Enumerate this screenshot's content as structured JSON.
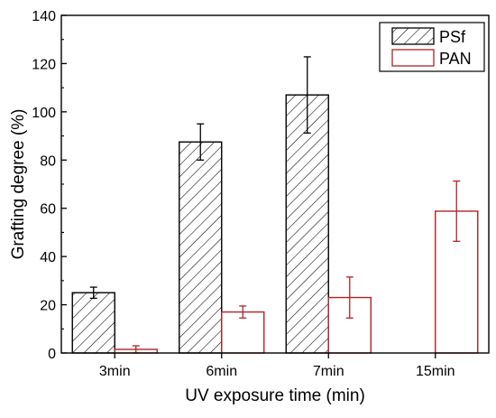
{
  "chart_data": {
    "type": "bar",
    "title": "",
    "xlabel": "UV exposure time (min)",
    "ylabel": "Grafting degree (%)",
    "ylim": [
      0,
      140
    ],
    "yticks": [
      0,
      20,
      40,
      60,
      80,
      100,
      120,
      140
    ],
    "categories": [
      "3min",
      "6min",
      "7min",
      "15min"
    ],
    "grid": false,
    "legend_position": "top-right",
    "series": [
      {
        "name": "PSf",
        "color": "#000000",
        "fill": "hatched",
        "values": [
          25.0,
          87.5,
          107.0,
          null
        ],
        "errors": [
          2.3,
          7.5,
          15.8,
          null
        ]
      },
      {
        "name": "PAN",
        "color": "#b22222",
        "fill": "white",
        "values": [
          1.5,
          17.0,
          23.0,
          58.8
        ],
        "errors": [
          1.5,
          2.5,
          8.5,
          12.5
        ]
      }
    ]
  }
}
